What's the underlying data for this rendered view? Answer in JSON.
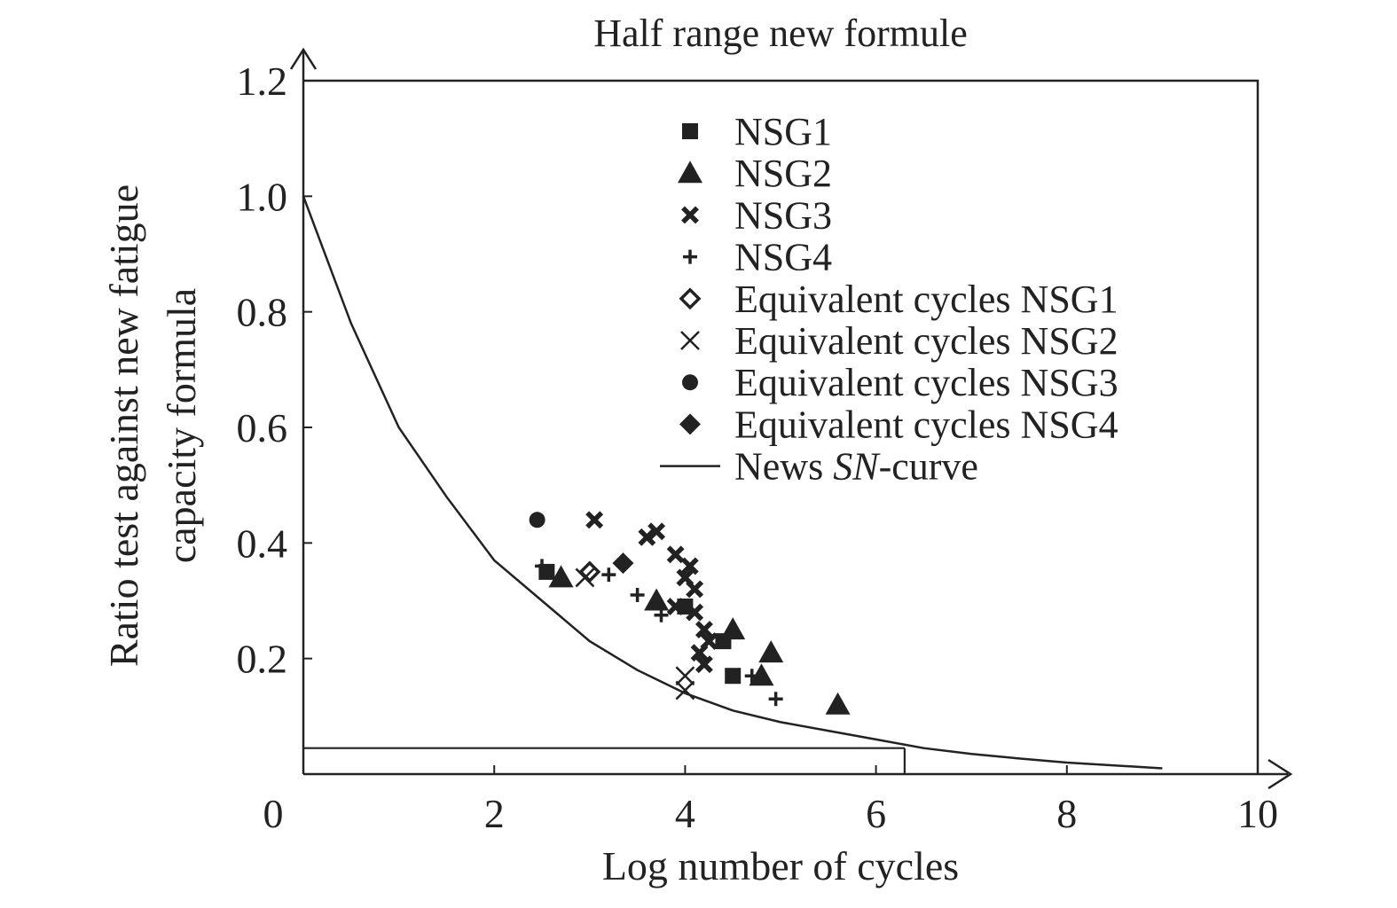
{
  "chart_data": {
    "type": "scatter",
    "title": "Half range new formule",
    "xlabel": "Log number of cycles",
    "ylabel_lines": [
      "Ratio test against new fatigue",
      "capacity formula"
    ],
    "xlim": [
      0,
      10
    ],
    "ylim": [
      0,
      1.2
    ],
    "x_ticks": [
      0,
      2,
      4,
      6,
      8,
      10
    ],
    "x_tick_labels": [
      "0",
      "2",
      "4",
      "6",
      "8",
      "10"
    ],
    "y_ticks": [
      0.2,
      0.4,
      0.6,
      0.8,
      1.0,
      1.2
    ],
    "y_tick_labels": [
      "0.2",
      "0.4",
      "0.6",
      "0.8",
      "1.0",
      "1.2"
    ],
    "grid": false,
    "legend_position": "top-right",
    "colors": {
      "ink": "#222222",
      "background": "#ffffff"
    },
    "series": [
      {
        "name": "NSG1",
        "marker": "square",
        "points": [
          [
            2.55,
            0.35
          ],
          [
            4.0,
            0.29
          ],
          [
            4.4,
            0.23
          ],
          [
            4.5,
            0.17
          ]
        ]
      },
      {
        "name": "NSG2",
        "marker": "triangle",
        "points": [
          [
            2.7,
            0.34
          ],
          [
            3.7,
            0.3
          ],
          [
            4.5,
            0.25
          ],
          [
            4.8,
            0.17
          ],
          [
            4.9,
            0.21
          ],
          [
            5.6,
            0.12
          ]
        ]
      },
      {
        "name": "NSG3",
        "marker": "x-bold",
        "points": [
          [
            3.05,
            0.44
          ],
          [
            3.6,
            0.41
          ],
          [
            3.7,
            0.42
          ],
          [
            3.9,
            0.38
          ],
          [
            4.0,
            0.34
          ],
          [
            4.05,
            0.36
          ],
          [
            4.1,
            0.32
          ],
          [
            4.1,
            0.28
          ],
          [
            4.2,
            0.25
          ],
          [
            4.25,
            0.23
          ],
          [
            4.15,
            0.21
          ],
          [
            4.2,
            0.19
          ],
          [
            3.9,
            0.29
          ]
        ]
      },
      {
        "name": "NSG4",
        "marker": "plus",
        "points": [
          [
            2.5,
            0.36
          ],
          [
            3.2,
            0.345
          ],
          [
            3.5,
            0.31
          ],
          [
            3.75,
            0.275
          ],
          [
            4.7,
            0.17
          ],
          [
            4.95,
            0.13
          ]
        ]
      },
      {
        "name": "Equivalent cycles NSG1",
        "marker": "diamond-open",
        "points": [
          [
            3.0,
            0.35
          ]
        ]
      },
      {
        "name": "Equivalent cycles NSG2",
        "marker": "x-thin",
        "points": [
          [
            2.95,
            0.34
          ],
          [
            4.0,
            0.17
          ],
          [
            4.0,
            0.145
          ]
        ]
      },
      {
        "name": "Equivalent cycles NSG3",
        "marker": "circle",
        "points": [
          [
            2.45,
            0.44
          ]
        ]
      },
      {
        "name": "Equivalent cycles NSG4",
        "marker": "diamond",
        "points": [
          [
            3.35,
            0.365
          ]
        ]
      },
      {
        "name_parts": [
          "News ",
          "SN",
          "-curve"
        ],
        "marker": "line",
        "points": [
          [
            0,
            1.0
          ],
          [
            0.5,
            0.78
          ],
          [
            1,
            0.6
          ],
          [
            1.5,
            0.48
          ],
          [
            2,
            0.37
          ],
          [
            2.5,
            0.3
          ],
          [
            3,
            0.23
          ],
          [
            3.5,
            0.18
          ],
          [
            4,
            0.14
          ],
          [
            4.5,
            0.11
          ],
          [
            5,
            0.09
          ],
          [
            5.5,
            0.075
          ],
          [
            6,
            0.06
          ],
          [
            6.5,
            0.045
          ],
          [
            7,
            0.035
          ],
          [
            7.5,
            0.027
          ],
          [
            8,
            0.02
          ],
          [
            8.5,
            0.015
          ],
          [
            9,
            0.01
          ]
        ]
      }
    ],
    "annotations": {
      "horizontal_line_y": 0.045,
      "vertical_line": {
        "x": 6.3,
        "y_from": 0,
        "y_to": 0.045
      }
    }
  }
}
